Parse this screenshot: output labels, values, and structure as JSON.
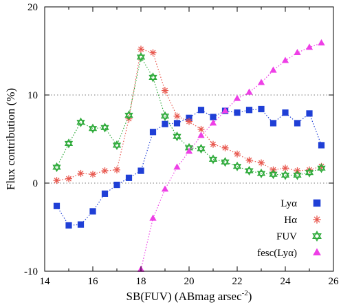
{
  "chart_data": {
    "type": "scatter",
    "xlabel": "SB(FUV) (ABmag arsec",
    "xlabel_superscript": "-2",
    "xlabel_close": ")",
    "ylabel": "Flux contribution (%)",
    "xlim": [
      14,
      26
    ],
    "ylim": [
      -10,
      20
    ],
    "xticks": [
      "14",
      "16",
      "18",
      "20",
      "22",
      "24",
      "26"
    ],
    "yticks": [
      "-10",
      "0",
      "10",
      "20"
    ],
    "hgrid": [
      0,
      10
    ],
    "legend_position": "bottom-right",
    "series": [
      {
        "name": "Lyα",
        "marker": "square",
        "color": "#1f3fd6",
        "connected": false,
        "x": [
          14.5,
          15.0,
          15.5,
          16.0,
          16.5,
          17.0,
          17.5,
          18.0,
          18.5,
          19.0,
          19.5,
          20.0,
          20.5,
          21.0,
          21.5,
          22.0,
          22.5,
          23.0,
          23.5,
          24.0,
          24.5,
          25.0,
          25.5
        ],
        "y": [
          -2.6,
          -4.8,
          -4.7,
          -3.2,
          -1.2,
          -0.2,
          0.6,
          1.4,
          5.8,
          6.7,
          6.8,
          7.4,
          8.3,
          7.5,
          8.2,
          8.0,
          8.3,
          8.4,
          6.8,
          8.0,
          6.8,
          7.9,
          4.3
        ]
      },
      {
        "name": "Hα",
        "marker": "asterisk",
        "color": "#e8584f",
        "connected": true,
        "x": [
          14.5,
          15.0,
          15.5,
          16.0,
          16.5,
          17.0,
          17.5,
          18.0,
          18.5,
          19.0,
          19.5,
          20.0,
          20.5,
          21.0,
          21.5,
          22.0,
          22.5,
          23.0,
          23.5,
          24.0,
          24.5,
          25.0,
          25.5
        ],
        "y": [
          0.3,
          0.5,
          1.1,
          1.0,
          1.4,
          1.5,
          7.3,
          15.2,
          14.8,
          10.5,
          7.6,
          7.0,
          6.1,
          4.4,
          4.0,
          3.3,
          2.6,
          2.3,
          1.5,
          1.7,
          1.4,
          1.5,
          1.9
        ]
      },
      {
        "name": "FUV",
        "marker": "hexagram",
        "color": "#2eaa3a",
        "connected": true,
        "x": [
          14.5,
          15.0,
          15.5,
          16.0,
          16.5,
          17.0,
          17.5,
          18.0,
          18.5,
          19.0,
          19.5,
          20.0,
          20.5,
          21.0,
          21.5,
          22.0,
          22.5,
          23.0,
          23.5,
          24.0,
          24.5,
          25.0,
          25.5
        ],
        "y": [
          1.8,
          4.5,
          6.9,
          6.2,
          6.3,
          4.3,
          7.7,
          14.3,
          12.0,
          7.6,
          5.3,
          4.0,
          3.9,
          2.7,
          2.4,
          1.9,
          1.4,
          1.1,
          1.0,
          0.9,
          0.9,
          1.2,
          1.7
        ]
      },
      {
        "name": "fesc(Lyα)",
        "marker": "triangle",
        "color": "#ee3fe6",
        "connected": true,
        "x": [
          18.0,
          18.5,
          19.0,
          19.5,
          20.0,
          20.5,
          21.0,
          21.5,
          22.0,
          22.5,
          23.0,
          23.5,
          24.0,
          24.5,
          25.0,
          25.5
        ],
        "y": [
          -9.8,
          -4.0,
          -0.7,
          1.8,
          3.6,
          5.4,
          6.8,
          8.2,
          9.6,
          10.3,
          11.4,
          12.8,
          13.9,
          14.8,
          15.4,
          15.9
        ]
      }
    ]
  }
}
